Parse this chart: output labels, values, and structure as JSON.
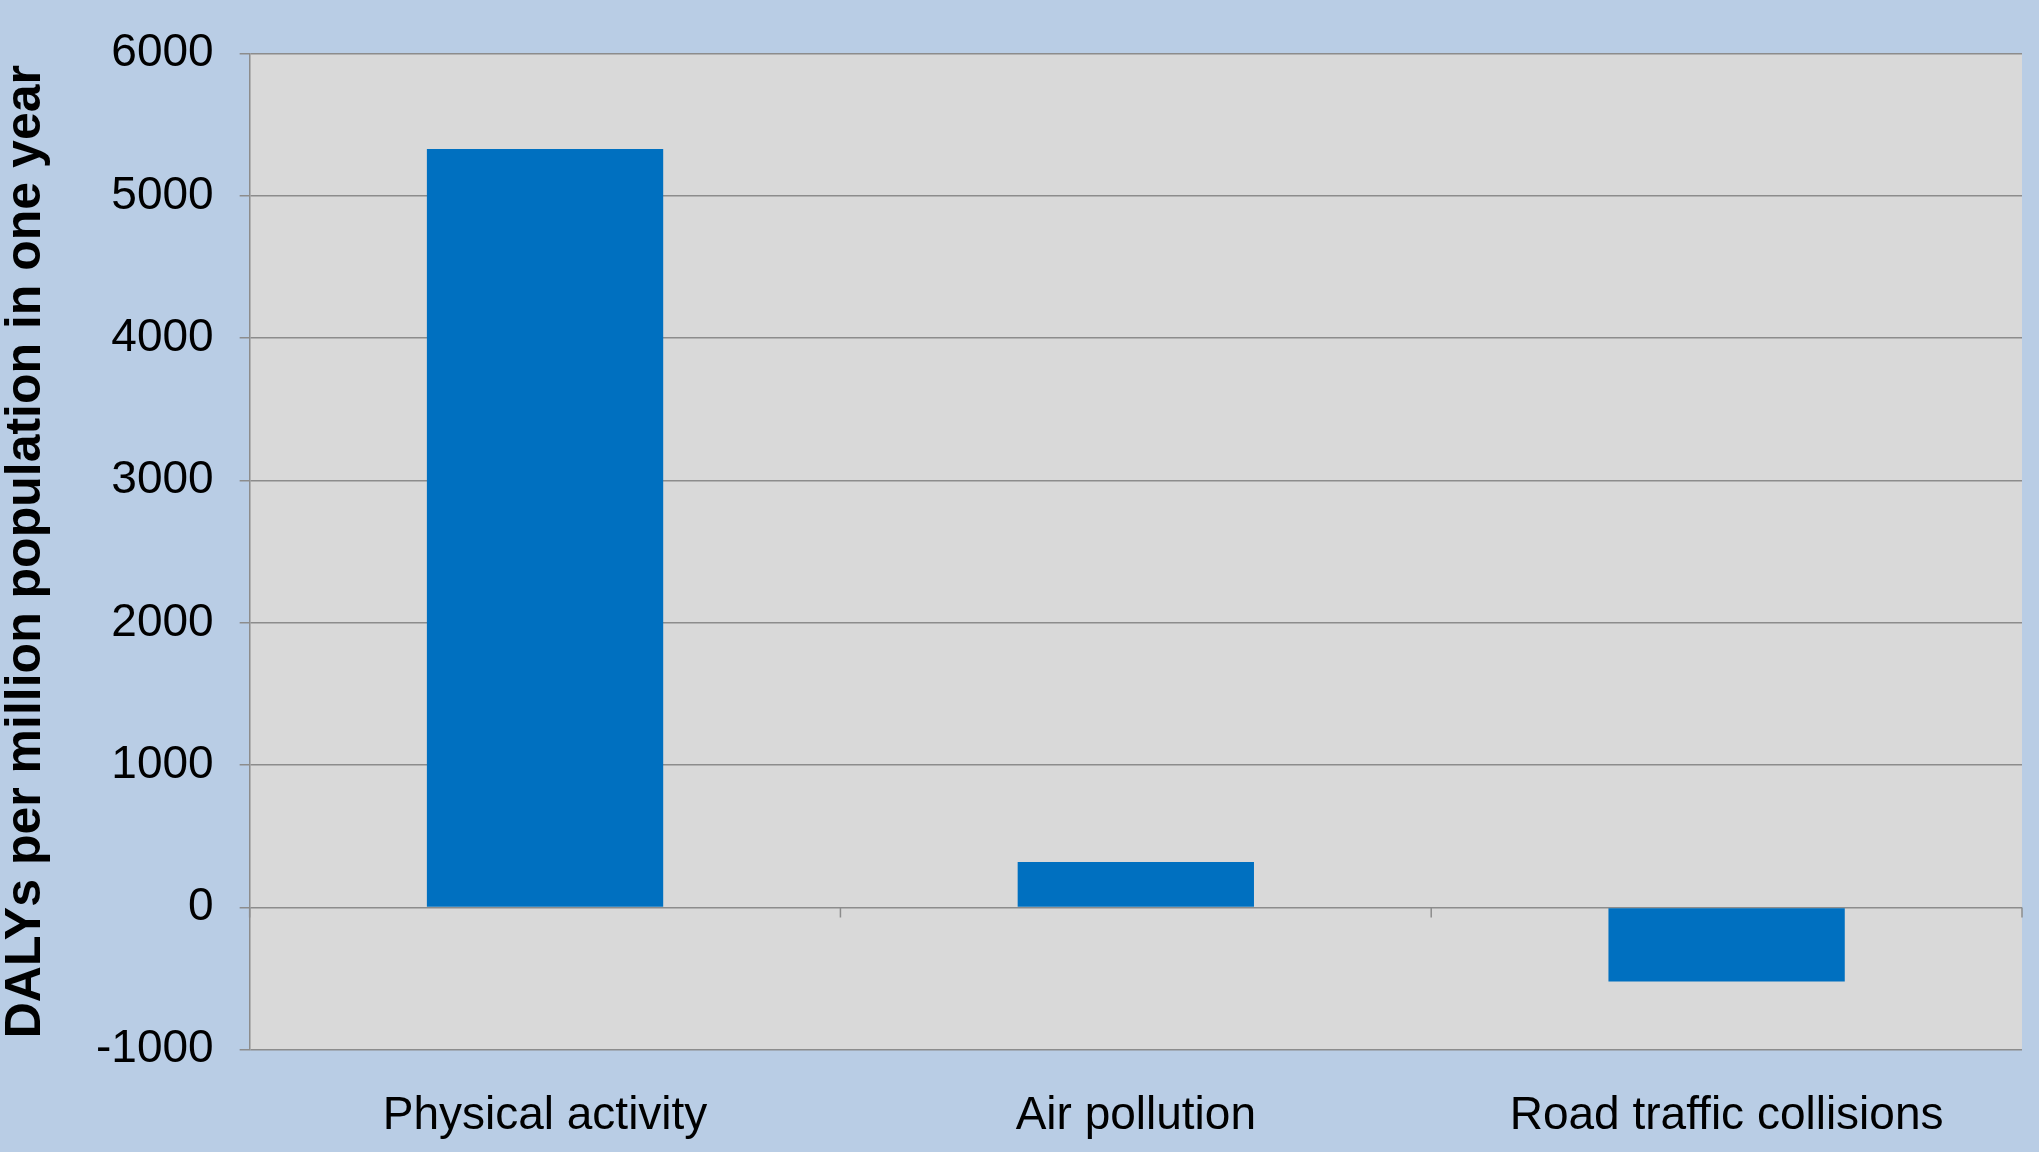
{
  "chart_data": {
    "type": "bar",
    "ylabel": "DALYs per million population in one year",
    "categories": [
      "Physical activity",
      "Air pollution",
      "Road traffic collisions"
    ],
    "values": [
      5330,
      320,
      -520
    ],
    "color": "#0070c0",
    "ylim": [
      -1000,
      6000
    ],
    "yticks": [
      -1000,
      0,
      1000,
      2000,
      3000,
      4000,
      5000,
      6000
    ],
    "grid": "y"
  }
}
